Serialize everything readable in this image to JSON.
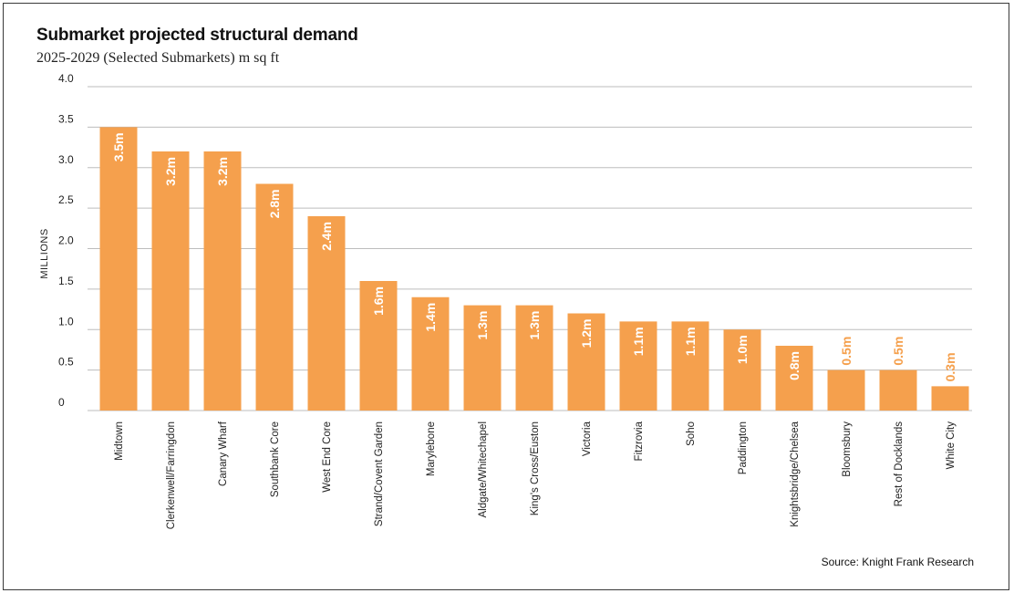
{
  "chart_data": {
    "type": "bar",
    "title": "Submarket projected structural demand",
    "subtitle": "2025-2029 (Selected Submarkets) m sq ft",
    "ylabel": "MILLIONS",
    "xlabel": "",
    "ylim": [
      0,
      4.0
    ],
    "yticks": [
      0,
      0.5,
      1.0,
      1.5,
      2.0,
      2.5,
      3.0,
      3.5,
      4.0
    ],
    "ytick_labels": [
      "0",
      "0.5",
      "1.0",
      "1.5",
      "2.0",
      "2.5",
      "3.0",
      "3.5",
      "4.0"
    ],
    "grid": true,
    "legend": "none",
    "categories": [
      "Midtown",
      "Clerkenwell/Farringdon",
      "Canary Wharf",
      "Southbank Core",
      "West End Core",
      "Strand/Covent Garden",
      "Marylebone",
      "Aldgate/Whitechapel",
      "King's Cross/Euston",
      "Victoria",
      "Fitzrovia",
      "Soho",
      "Paddington",
      "Knightsbridge/Chelsea",
      "Bloomsbury",
      "Rest of Docklands",
      "White City"
    ],
    "values": [
      3.5,
      3.2,
      3.2,
      2.8,
      2.4,
      1.6,
      1.4,
      1.3,
      1.3,
      1.2,
      1.1,
      1.1,
      1.0,
      0.8,
      0.5,
      0.5,
      0.3
    ],
    "data_labels": [
      "3.5m",
      "3.2m",
      "3.2m",
      "2.8m",
      "2.4m",
      "1.6m",
      "1.4m",
      "1.3m",
      "1.3m",
      "1.2m",
      "1.1m",
      "1.1m",
      "1.0m",
      "0.8m",
      "0.5m",
      "0.5m",
      "0.3m"
    ],
    "source": "Source: Knight Frank Research",
    "colors": {
      "bar": "#F5A04D",
      "label_inside": "#ffffff",
      "label_outside": "#F5A04D",
      "grid": "#bdbdbd"
    }
  }
}
